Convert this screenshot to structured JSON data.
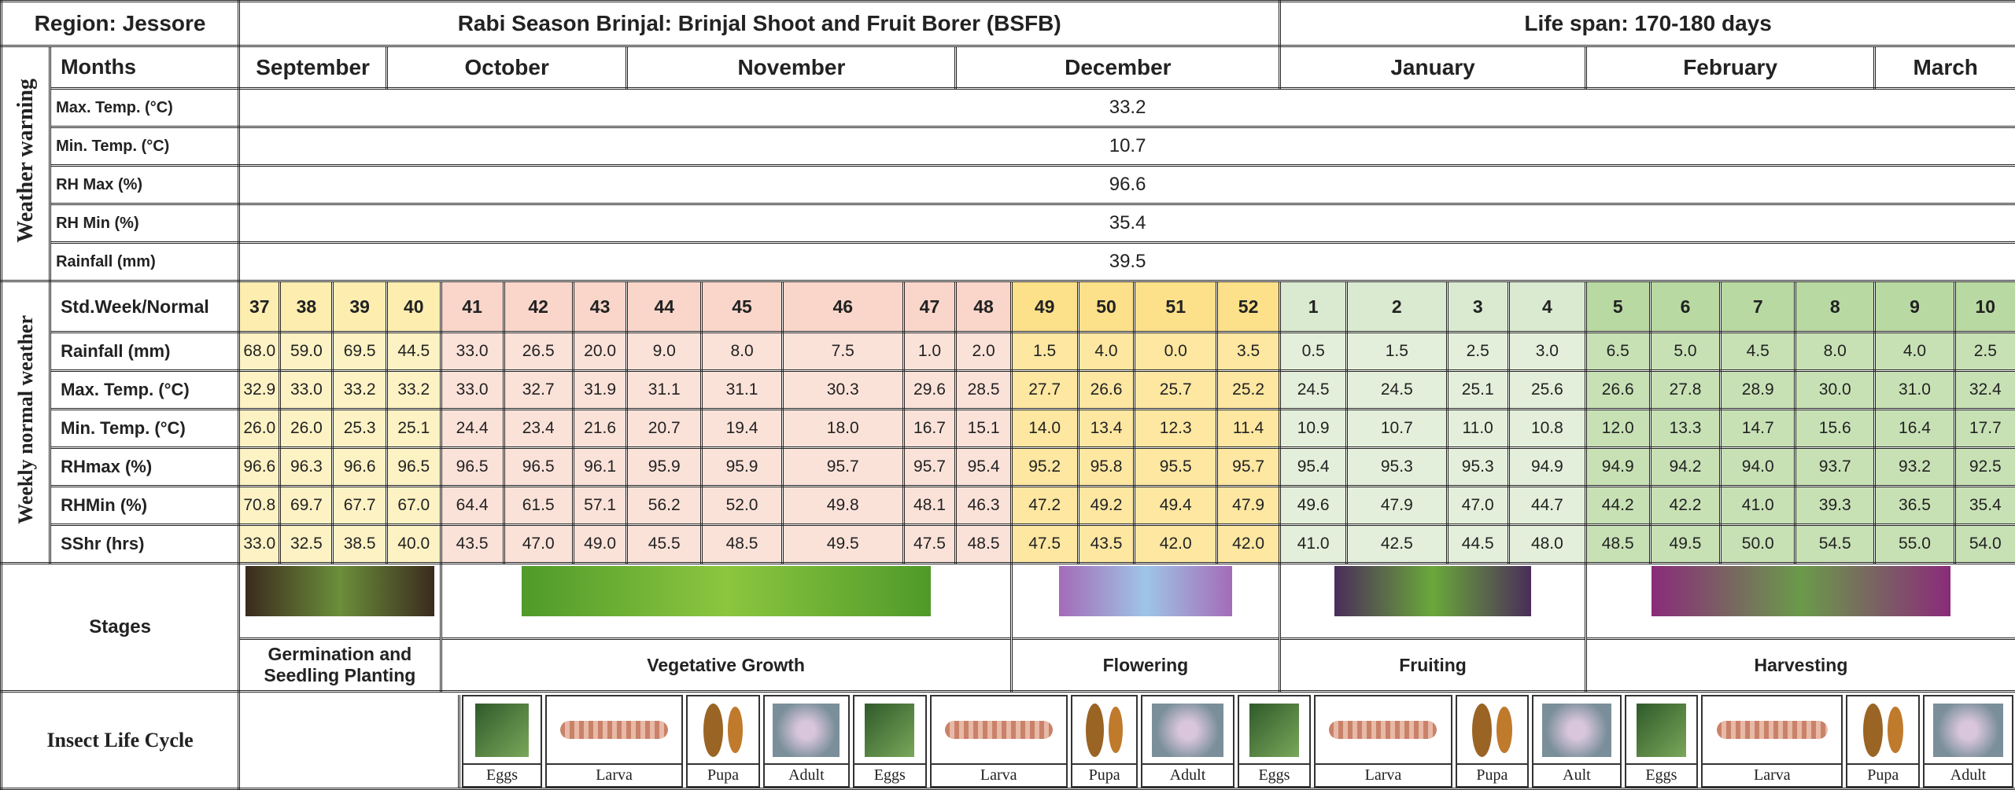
{
  "header": {
    "region": "Region: Jessore",
    "title": "Rabi Season Brinjal: Brinjal Shoot and Fruit Borer (BSFB)",
    "lifespan": "Life span: 170-180 days"
  },
  "months": {
    "label": "Months",
    "names": [
      "September",
      "October",
      "November",
      "December",
      "January",
      "February",
      "March"
    ]
  },
  "weather_warning": {
    "label": "Weather warning",
    "rows": [
      {
        "label": "Max. Temp. (°C)",
        "value": "33.2"
      },
      {
        "label": "Min. Temp. (°C)",
        "value": "10.7"
      },
      {
        "label": "RH Max (%)",
        "value": "96.6"
      },
      {
        "label": "RH Min (%)",
        "value": "35.4"
      },
      {
        "label": "Rainfall (mm)",
        "value": "39.5"
      }
    ]
  },
  "weekly_normal": {
    "label": "Weekly normal weather",
    "header_label": "Std.Week/Normal",
    "weeks": [
      "37",
      "38",
      "39",
      "40",
      "41",
      "42",
      "43",
      "44",
      "45",
      "46",
      "47",
      "48",
      "49",
      "50",
      "51",
      "52",
      "1",
      "2",
      "3",
      "4",
      "5",
      "6",
      "7",
      "8",
      "9",
      "10"
    ],
    "rows": [
      {
        "label": "Rainfall (mm)",
        "values": [
          "68.0",
          "59.0",
          "69.5",
          "44.5",
          "33.0",
          "26.5",
          "20.0",
          "9.0",
          "8.0",
          "7.5",
          "1.0",
          "2.0",
          "1.5",
          "4.0",
          "0.0",
          "3.5",
          "0.5",
          "1.5",
          "2.5",
          "3.0",
          "6.5",
          "5.0",
          "4.5",
          "8.0",
          "4.0",
          "2.5"
        ]
      },
      {
        "label": "Max. Temp. (°C)",
        "values": [
          "32.9",
          "33.0",
          "33.2",
          "33.2",
          "33.0",
          "32.7",
          "31.9",
          "31.1",
          "31.1",
          "30.3",
          "29.6",
          "28.5",
          "27.7",
          "26.6",
          "25.7",
          "25.2",
          "24.5",
          "24.5",
          "25.1",
          "25.6",
          "26.6",
          "27.8",
          "28.9",
          "30.0",
          "31.0",
          "32.4"
        ]
      },
      {
        "label": "Min. Temp. (°C)",
        "values": [
          "26.0",
          "26.0",
          "25.3",
          "25.1",
          "24.4",
          "23.4",
          "21.6",
          "20.7",
          "19.4",
          "18.0",
          "16.7",
          "15.1",
          "14.0",
          "13.4",
          "12.3",
          "11.4",
          "10.9",
          "10.7",
          "11.0",
          "10.8",
          "12.0",
          "13.3",
          "14.7",
          "15.6",
          "16.4",
          "17.7"
        ]
      },
      {
        "label": "RHmax (%)",
        "values": [
          "96.6",
          "96.3",
          "96.6",
          "96.5",
          "96.5",
          "96.5",
          "96.1",
          "95.9",
          "95.9",
          "95.7",
          "95.7",
          "95.4",
          "95.2",
          "95.8",
          "95.5",
          "95.7",
          "95.4",
          "95.3",
          "95.3",
          "94.9",
          "94.9",
          "94.2",
          "94.0",
          "93.7",
          "93.2",
          "92.5"
        ]
      },
      {
        "label": "RHMin (%)",
        "values": [
          "70.8",
          "69.7",
          "67.7",
          "67.0",
          "64.4",
          "61.5",
          "57.1",
          "56.2",
          "52.0",
          "49.8",
          "48.1",
          "46.3",
          "47.2",
          "49.2",
          "49.4",
          "47.9",
          "49.6",
          "47.9",
          "47.0",
          "44.7",
          "44.2",
          "42.2",
          "41.0",
          "39.3",
          "36.5",
          "35.4"
        ]
      },
      {
        "label": "SShr (hrs)",
        "values": [
          "33.0",
          "32.5",
          "38.5",
          "40.0",
          "43.5",
          "47.0",
          "49.0",
          "45.5",
          "48.5",
          "49.5",
          "47.5",
          "48.5",
          "47.5",
          "43.5",
          "42.0",
          "42.0",
          "41.0",
          "42.5",
          "44.5",
          "48.0",
          "48.5",
          "49.5",
          "50.0",
          "54.5",
          "55.0",
          "54.0"
        ]
      }
    ]
  },
  "stages": {
    "label": "Stages",
    "names": [
      "Germination and Seedling Planting",
      "Vegetative Growth",
      "Flowering",
      "Fruiting",
      "Harvesting"
    ]
  },
  "insect_life_cycle": {
    "label": "Insect Life Cycle",
    "stages": [
      "Eggs",
      "Larva",
      "Pupa",
      "Adult",
      "Eggs",
      "Larva",
      "Pupa",
      "Adult",
      "Eggs",
      "Larva",
      "Pupa",
      "Ault",
      "Eggs",
      "Larva",
      "Pupa",
      "Adult"
    ]
  }
}
